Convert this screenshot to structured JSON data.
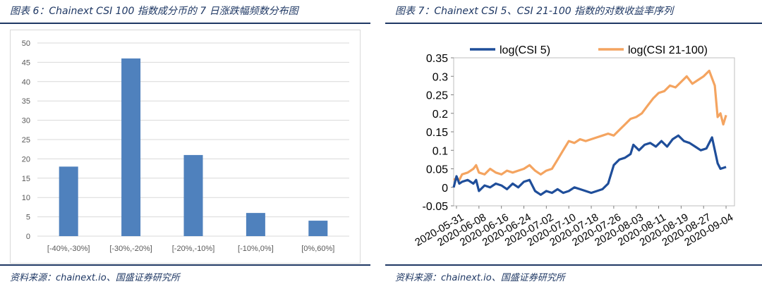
{
  "figures": [
    {
      "title": "图表 6：Chainext CSI 100 指数成分币的 7 日涨跌幅频数分布图",
      "source": "资料来源：chainext.io、国盛证券研究所"
    },
    {
      "title": "图表 7：Chainext CSI 5、CSI 21-100 指数的对数收益率序列",
      "source": "资料来源：chainext.io、国盛证券研究所"
    }
  ],
  "colors": {
    "bar": "#4f81bd",
    "csi5": "#1f4e9a",
    "csi21_100": "#f4a460",
    "title": "#1f3864",
    "grid": "#d9d9d9"
  },
  "chart_data": [
    {
      "type": "bar",
      "categories": [
        "[-40%,-30%]",
        "[-30%,-20%]",
        "[-20%,-10%]",
        "[-10%,0%]",
        "[0%,60%]"
      ],
      "values": [
        18,
        46,
        21,
        6,
        4
      ],
      "ylim": [
        0,
        50
      ],
      "yticks": [
        "0",
        "5",
        "10",
        "15",
        "20",
        "25",
        "30",
        "35",
        "40",
        "45",
        "50"
      ],
      "grid": true
    },
    {
      "type": "line",
      "legend_position": "top",
      "ylim": [
        -0.05,
        0.35
      ],
      "yticks": [
        "-0.05",
        "0",
        "0.05",
        "0.1",
        "0.15",
        "0.2",
        "0.25",
        "0.3",
        "0.35"
      ],
      "xticks": [
        "2020-05-31",
        "2020-06-08",
        "2020-06-16",
        "2020-06-24",
        "2020-07-02",
        "2020-07-10",
        "2020-07-18",
        "2020-07-26",
        "2020-08-03",
        "2020-08-11",
        "2020-08-19",
        "2020-08-27",
        "2020-09-04"
      ],
      "series": [
        {
          "name": "log(CSI 5)",
          "points": [
            [
              "2020-05-30",
              0.0
            ],
            [
              "2020-05-31",
              0.03
            ],
            [
              "2020-06-01",
              0.01
            ],
            [
              "2020-06-02",
              0.015
            ],
            [
              "2020-06-04",
              0.02
            ],
            [
              "2020-06-06",
              0.01
            ],
            [
              "2020-06-07",
              0.02
            ],
            [
              "2020-06-08",
              -0.01
            ],
            [
              "2020-06-10",
              0.005
            ],
            [
              "2020-06-12",
              0.0
            ],
            [
              "2020-06-14",
              0.01
            ],
            [
              "2020-06-16",
              0.005
            ],
            [
              "2020-06-18",
              -0.005
            ],
            [
              "2020-06-20",
              0.01
            ],
            [
              "2020-06-22",
              0.0
            ],
            [
              "2020-06-24",
              0.015
            ],
            [
              "2020-06-26",
              0.02
            ],
            [
              "2020-06-28",
              -0.01
            ],
            [
              "2020-06-30",
              -0.02
            ],
            [
              "2020-07-02",
              -0.01
            ],
            [
              "2020-07-04",
              -0.015
            ],
            [
              "2020-07-06",
              -0.005
            ],
            [
              "2020-07-08",
              -0.015
            ],
            [
              "2020-07-10",
              -0.01
            ],
            [
              "2020-07-12",
              0.0
            ],
            [
              "2020-07-14",
              -0.005
            ],
            [
              "2020-07-16",
              -0.01
            ],
            [
              "2020-07-18",
              -0.015
            ],
            [
              "2020-07-20",
              -0.01
            ],
            [
              "2020-07-22",
              -0.005
            ],
            [
              "2020-07-24",
              0.01
            ],
            [
              "2020-07-26",
              0.06
            ],
            [
              "2020-07-28",
              0.075
            ],
            [
              "2020-07-30",
              0.08
            ],
            [
              "2020-08-01",
              0.09
            ],
            [
              "2020-08-02",
              0.115
            ],
            [
              "2020-08-04",
              0.1
            ],
            [
              "2020-08-06",
              0.115
            ],
            [
              "2020-08-08",
              0.12
            ],
            [
              "2020-08-10",
              0.11
            ],
            [
              "2020-08-12",
              0.125
            ],
            [
              "2020-08-14",
              0.11
            ],
            [
              "2020-08-16",
              0.13
            ],
            [
              "2020-08-18",
              0.14
            ],
            [
              "2020-08-20",
              0.125
            ],
            [
              "2020-08-22",
              0.12
            ],
            [
              "2020-08-24",
              0.11
            ],
            [
              "2020-08-26",
              0.1
            ],
            [
              "2020-08-28",
              0.105
            ],
            [
              "2020-08-30",
              0.135
            ],
            [
              "2020-09-01",
              0.065
            ],
            [
              "2020-09-02",
              0.05
            ],
            [
              "2020-09-04",
              0.055
            ]
          ]
        },
        {
          "name": "log(CSI 21-100)",
          "points": [
            [
              "2020-05-30",
              0.02
            ],
            [
              "2020-05-31",
              0.025
            ],
            [
              "2020-06-01",
              0.02
            ],
            [
              "2020-06-02",
              0.035
            ],
            [
              "2020-06-04",
              0.04
            ],
            [
              "2020-06-06",
              0.05
            ],
            [
              "2020-06-07",
              0.06
            ],
            [
              "2020-06-08",
              0.04
            ],
            [
              "2020-06-10",
              0.035
            ],
            [
              "2020-06-12",
              0.05
            ],
            [
              "2020-06-14",
              0.04
            ],
            [
              "2020-06-16",
              0.035
            ],
            [
              "2020-06-18",
              0.045
            ],
            [
              "2020-06-20",
              0.04
            ],
            [
              "2020-06-22",
              0.045
            ],
            [
              "2020-06-24",
              0.05
            ],
            [
              "2020-06-26",
              0.06
            ],
            [
              "2020-06-28",
              0.045
            ],
            [
              "2020-06-30",
              0.035
            ],
            [
              "2020-07-02",
              0.045
            ],
            [
              "2020-07-04",
              0.05
            ],
            [
              "2020-07-06",
              0.075
            ],
            [
              "2020-07-08",
              0.1
            ],
            [
              "2020-07-10",
              0.125
            ],
            [
              "2020-07-12",
              0.12
            ],
            [
              "2020-07-14",
              0.13
            ],
            [
              "2020-07-16",
              0.125
            ],
            [
              "2020-07-18",
              0.13
            ],
            [
              "2020-07-20",
              0.135
            ],
            [
              "2020-07-22",
              0.14
            ],
            [
              "2020-07-24",
              0.145
            ],
            [
              "2020-07-26",
              0.14
            ],
            [
              "2020-07-28",
              0.155
            ],
            [
              "2020-07-30",
              0.17
            ],
            [
              "2020-08-01",
              0.185
            ],
            [
              "2020-08-03",
              0.19
            ],
            [
              "2020-08-05",
              0.2
            ],
            [
              "2020-08-07",
              0.22
            ],
            [
              "2020-08-09",
              0.24
            ],
            [
              "2020-08-11",
              0.255
            ],
            [
              "2020-08-13",
              0.26
            ],
            [
              "2020-08-15",
              0.275
            ],
            [
              "2020-08-17",
              0.27
            ],
            [
              "2020-08-19",
              0.285
            ],
            [
              "2020-08-21",
              0.3
            ],
            [
              "2020-08-23",
              0.28
            ],
            [
              "2020-08-25",
              0.29
            ],
            [
              "2020-08-27",
              0.3
            ],
            [
              "2020-08-29",
              0.315
            ],
            [
              "2020-08-31",
              0.275
            ],
            [
              "2020-09-01",
              0.19
            ],
            [
              "2020-09-02",
              0.2
            ],
            [
              "2020-09-03",
              0.17
            ],
            [
              "2020-09-04",
              0.195
            ]
          ]
        }
      ]
    }
  ]
}
